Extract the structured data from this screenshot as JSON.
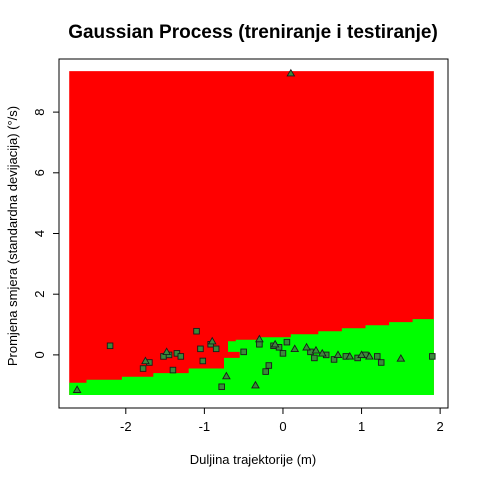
{
  "chart_data": {
    "type": "scatter",
    "title": "Gaussian Process (treniranje i testiranje)",
    "xlabel": "Duljina trajektorije (m)",
    "ylabel": "Promjena smjera (standardna devijacija) (°/s)",
    "xlim": [
      -2.85,
      2.1
    ],
    "ylim": [
      -1.75,
      9.75
    ],
    "x_ticks": [
      -2,
      -1,
      0,
      1,
      2
    ],
    "y_ticks": [
      0,
      2,
      4,
      6,
      8
    ],
    "grid": false,
    "legend": "none",
    "colors": {
      "region_red": "#ff0000",
      "region_green": "#00ff00",
      "point_fill": "#3a8a3a",
      "point_stroke": "#1a1a1a",
      "axis": "#000000"
    },
    "regions": {
      "extent_x": [
        -2.72,
        1.92
      ],
      "extent_y": [
        -1.32,
        9.35
      ],
      "boundary": [
        {
          "x": -2.72,
          "y": -1.32
        },
        {
          "x": -2.72,
          "y": -0.92
        },
        {
          "x": -2.5,
          "y": -0.92
        },
        {
          "x": -2.5,
          "y": -0.82
        },
        {
          "x": -2.05,
          "y": -0.82
        },
        {
          "x": -2.05,
          "y": -0.72
        },
        {
          "x": -1.65,
          "y": -0.72
        },
        {
          "x": -1.65,
          "y": -0.6
        },
        {
          "x": -1.2,
          "y": -0.6
        },
        {
          "x": -1.2,
          "y": -0.45
        },
        {
          "x": -0.75,
          "y": -0.45
        },
        {
          "x": -0.75,
          "y": -0.1
        },
        {
          "x": -0.55,
          "y": -0.1
        },
        {
          "x": -0.55,
          "y": 0.1
        },
        {
          "x": -0.7,
          "y": 0.1
        },
        {
          "x": -0.7,
          "y": 0.45
        },
        {
          "x": -0.6,
          "y": 0.45
        },
        {
          "x": -0.6,
          "y": 0.5
        },
        {
          "x": -0.3,
          "y": 0.5
        },
        {
          "x": -0.3,
          "y": 0.58
        },
        {
          "x": 0.1,
          "y": 0.58
        },
        {
          "x": 0.1,
          "y": 0.68
        },
        {
          "x": 0.45,
          "y": 0.68
        },
        {
          "x": 0.45,
          "y": 0.78
        },
        {
          "x": 0.75,
          "y": 0.78
        },
        {
          "x": 0.75,
          "y": 0.88
        },
        {
          "x": 1.05,
          "y": 0.88
        },
        {
          "x": 1.05,
          "y": 0.98
        },
        {
          "x": 1.35,
          "y": 0.98
        },
        {
          "x": 1.35,
          "y": 1.08
        },
        {
          "x": 1.65,
          "y": 1.08
        },
        {
          "x": 1.65,
          "y": 1.18
        },
        {
          "x": 1.92,
          "y": 1.18
        },
        {
          "x": 1.92,
          "y": -1.32
        }
      ]
    },
    "series": [
      {
        "marker": "square",
        "points": [
          {
            "x": -2.2,
            "y": 0.3
          },
          {
            "x": -1.78,
            "y": -0.45
          },
          {
            "x": -1.7,
            "y": -0.25
          },
          {
            "x": -1.52,
            "y": -0.05
          },
          {
            "x": -1.45,
            "y": 0.0
          },
          {
            "x": -1.4,
            "y": -0.5
          },
          {
            "x": -1.35,
            "y": 0.05
          },
          {
            "x": -1.3,
            "y": -0.05
          },
          {
            "x": -1.1,
            "y": 0.78
          },
          {
            "x": -1.05,
            "y": 0.2
          },
          {
            "x": -1.02,
            "y": -0.2
          },
          {
            "x": -0.92,
            "y": 0.35
          },
          {
            "x": -0.85,
            "y": 0.2
          },
          {
            "x": -0.78,
            "y": -1.05
          },
          {
            "x": -0.5,
            "y": 0.1
          },
          {
            "x": -0.3,
            "y": 0.35
          },
          {
            "x": -0.22,
            "y": -0.55
          },
          {
            "x": -0.18,
            "y": -0.35
          },
          {
            "x": -0.12,
            "y": 0.3
          },
          {
            "x": -0.05,
            "y": 0.25
          },
          {
            "x": 0.0,
            "y": 0.05
          },
          {
            "x": 0.05,
            "y": 0.42
          },
          {
            "x": 0.35,
            "y": 0.1
          },
          {
            "x": 0.4,
            "y": -0.1
          },
          {
            "x": 0.55,
            "y": 0.0
          },
          {
            "x": 0.65,
            "y": -0.15
          },
          {
            "x": 0.8,
            "y": -0.05
          },
          {
            "x": 0.95,
            "y": -0.1
          },
          {
            "x": 1.05,
            "y": 0.0
          },
          {
            "x": 1.2,
            "y": -0.05
          },
          {
            "x": 1.25,
            "y": -0.25
          },
          {
            "x": 1.9,
            "y": -0.05
          }
        ]
      },
      {
        "marker": "triangle",
        "points": [
          {
            "x": -2.62,
            "y": -1.15
          },
          {
            "x": -1.75,
            "y": -0.2
          },
          {
            "x": -1.48,
            "y": 0.1
          },
          {
            "x": -0.9,
            "y": 0.45
          },
          {
            "x": -0.72,
            "y": -0.7
          },
          {
            "x": -0.35,
            "y": -1.0
          },
          {
            "x": -0.3,
            "y": 0.52
          },
          {
            "x": -0.1,
            "y": 0.35
          },
          {
            "x": 0.1,
            "y": 9.28
          },
          {
            "x": 0.15,
            "y": 0.2
          },
          {
            "x": 0.3,
            "y": 0.25
          },
          {
            "x": 0.42,
            "y": 0.15
          },
          {
            "x": 0.5,
            "y": 0.05
          },
          {
            "x": 0.7,
            "y": 0.0
          },
          {
            "x": 0.85,
            "y": -0.05
          },
          {
            "x": 1.0,
            "y": 0.0
          },
          {
            "x": 1.1,
            "y": -0.05
          },
          {
            "x": 1.5,
            "y": -0.12
          }
        ]
      }
    ]
  }
}
